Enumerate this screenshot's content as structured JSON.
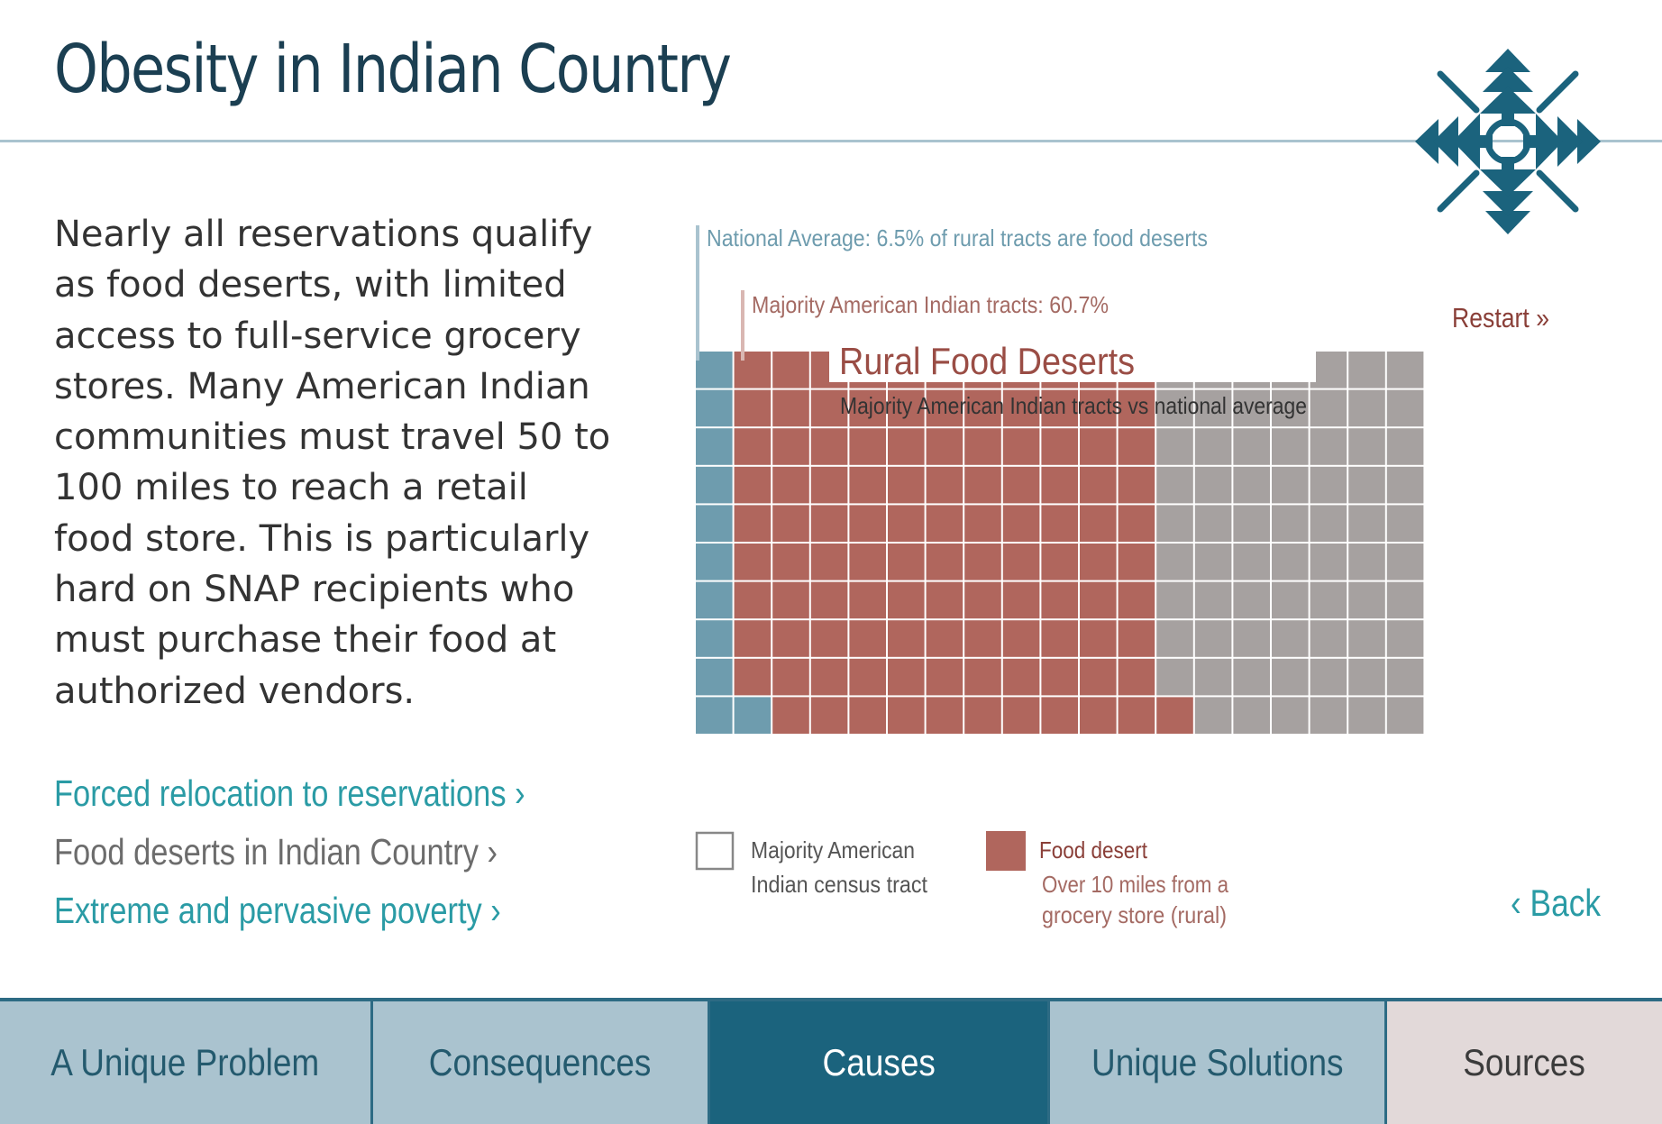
{
  "page": {
    "title": "Obesity in Indian Country",
    "emblem_icon": "four-directions-emblem-icon"
  },
  "intro": {
    "paragraph": "Nearly all reservations qualify as food deserts, with limited access to full-service grocery stores. Many American Indian communities must travel 50 to 100 miles to reach a retail food store. This is particularly hard on SNAP recipients who must purchase their food at authorized vendors."
  },
  "links": [
    {
      "label": "Forced relocation to reservations ›",
      "current": false
    },
    {
      "label": "Food deserts in Indian Country ›",
      "current": true
    },
    {
      "label": "Extreme and pervasive poverty ›",
      "current": false
    }
  ],
  "chart_data": {
    "type": "waffle",
    "title": "Rural Food Deserts",
    "subtitle": "Majority American Indian tracts vs national average",
    "grid": {
      "rows": 10,
      "cols": 19
    },
    "series": [
      {
        "name": "Majority American Indian tracts",
        "value_pct": 60.7,
        "color": "#b0665d"
      },
      {
        "name": "National Average",
        "value_pct": 6.5,
        "color": "#6e9cae"
      }
    ],
    "cell_counts": {
      "national_average_cells": 11,
      "food_desert_cells": 110,
      "other_american_indian_cells": 69
    },
    "annotations": [
      {
        "text": "National Average: 6.5% of rural tracts are food deserts",
        "color": "#6e9cae"
      },
      {
        "text": "Majority American Indian tracts: 60.7%",
        "color": "#a46a63"
      }
    ],
    "legend": [
      {
        "label_line1": "Majority American",
        "label_line2": "Indian census tract",
        "swatch": "outline",
        "color": "#555555"
      },
      {
        "label_line1": "Food desert",
        "note_line1": "Over 10 miles from a",
        "note_line2": "grocery store (rural)",
        "swatch": "fill",
        "color": "#b0665d"
      }
    ],
    "colors": {
      "blue": "#6e9cae",
      "red": "#b0665d",
      "gray": "#a6a1a0"
    }
  },
  "controls": {
    "restart_label": "Restart »",
    "back_label": "‹ Back"
  },
  "tabs": [
    {
      "label": "A Unique Problem"
    },
    {
      "label": "Consequences"
    },
    {
      "label": "Causes",
      "active": true
    },
    {
      "label": "Unique Solutions"
    },
    {
      "label": "Sources"
    }
  ]
}
